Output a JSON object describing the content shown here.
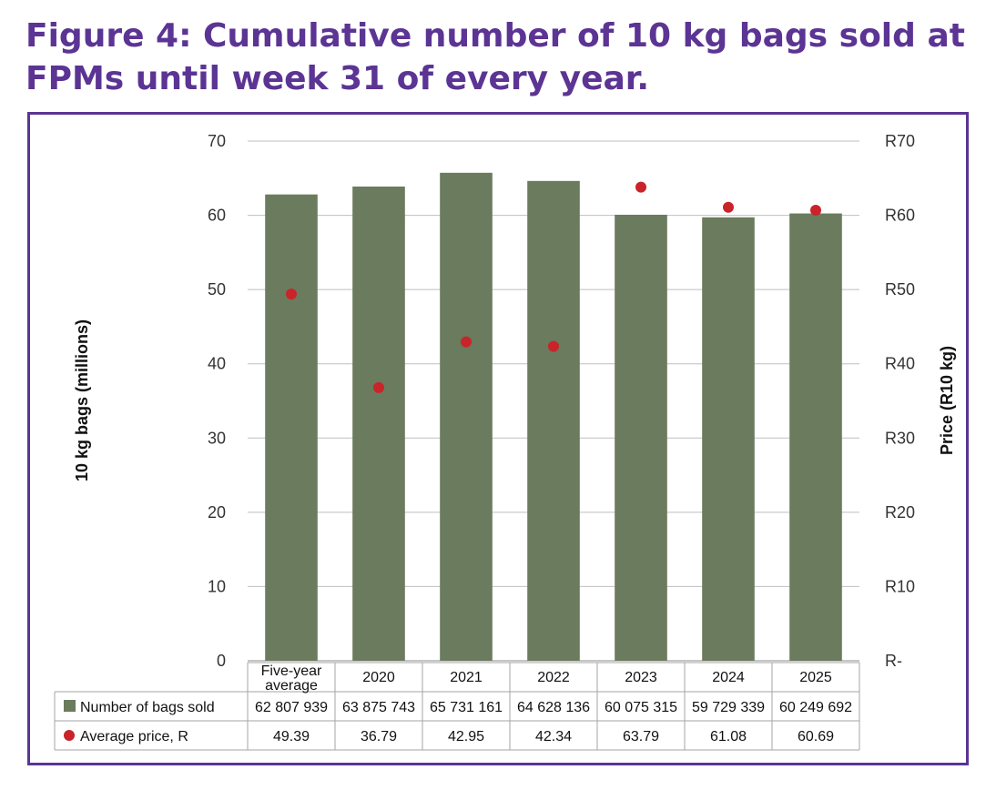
{
  "figure": {
    "title": "Figure 4: Cumulative number of 10 kg bags sold at FPMs until week 31 of every year."
  },
  "colors": {
    "bar": "#6b7b5d",
    "dot": "#c8242a",
    "title": "#5b3494",
    "frame": "#5b3494",
    "grid": "#bfbfbf"
  },
  "chart_data": {
    "type": "bar",
    "categories": [
      "Five-year average",
      "2020",
      "2021",
      "2022",
      "2023",
      "2024",
      "2025"
    ],
    "series": [
      {
        "name": "Number of bags sold",
        "type": "bar",
        "axis": "left",
        "values": [
          62.807939,
          63.875743,
          65.731161,
          64.628136,
          60.075315,
          59.729339,
          60.249692
        ],
        "labels": [
          "62 807 939",
          "63 875 743",
          "65 731 161",
          "64 628 136",
          "60 075 315",
          "59 729 339",
          "60 249 692"
        ]
      },
      {
        "name": "Average price, R",
        "type": "scatter",
        "axis": "right",
        "values": [
          49.39,
          36.79,
          42.95,
          42.34,
          63.79,
          61.08,
          60.69
        ],
        "labels": [
          "49.39",
          "36.79",
          "42.95",
          "42.34",
          "63.79",
          "61.08",
          "60.69"
        ]
      }
    ],
    "ylabel": "10 kg bags (millions)",
    "y2label": "Price (R10 kg)",
    "ylim": [
      0,
      70
    ],
    "y2lim": [
      0,
      70
    ],
    "yticks": [
      "0",
      "10",
      "20",
      "30",
      "40",
      "50",
      "60",
      "70"
    ],
    "y2ticks": [
      "R-",
      "R10",
      "R20",
      "R30",
      "R40",
      "R50",
      "R60",
      "R70"
    ],
    "category_labels": [
      [
        "Five-year",
        "average"
      ],
      [
        "2020"
      ],
      [
        "2021"
      ],
      [
        "2022"
      ],
      [
        "2023"
      ],
      [
        "2024"
      ],
      [
        "2025"
      ]
    ],
    "grid": true,
    "legend": "data table below plot"
  }
}
